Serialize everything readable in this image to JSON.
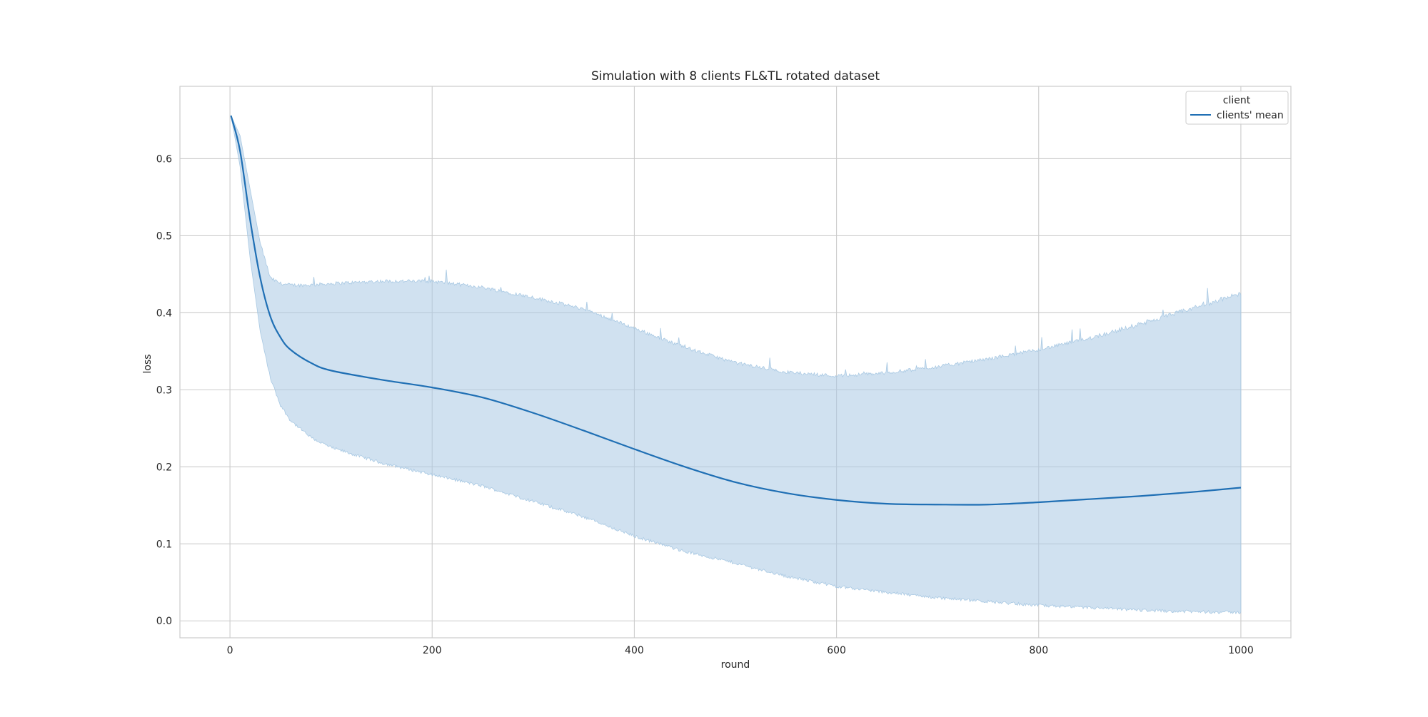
{
  "chart_data": {
    "type": "line",
    "title": "Simulation with 8 clients FL&TL rotated dataset",
    "xlabel": "round",
    "ylabel": "loss",
    "xlim": [
      -49.5,
      1049.5
    ],
    "ylim": [
      -0.022,
      0.694
    ],
    "xticks": [
      0,
      200,
      400,
      600,
      800,
      1000
    ],
    "yticks": [
      0.0,
      0.1,
      0.2,
      0.3,
      0.4,
      0.5,
      0.6
    ],
    "xtick_labels": [
      "0",
      "200",
      "400",
      "600",
      "800",
      "1000"
    ],
    "ytick_labels": [
      "0.0",
      "0.1",
      "0.2",
      "0.3",
      "0.4",
      "0.5",
      "0.6"
    ],
    "grid": true,
    "legend": {
      "title": "client",
      "location": "top-right",
      "entries": [
        "clients' mean"
      ]
    },
    "colors": {
      "line": "#1f6fb4",
      "band": "#a9c9e3",
      "grid": "#cccccc",
      "frame": "#cccccc"
    },
    "series": [
      {
        "name": "clients' mean",
        "x": [
          1,
          10,
          20,
          30,
          40,
          50,
          60,
          80,
          100,
          150,
          200,
          250,
          300,
          350,
          400,
          450,
          500,
          550,
          600,
          650,
          700,
          750,
          800,
          850,
          900,
          950,
          1000
        ],
        "y": [
          0.656,
          0.61,
          0.52,
          0.445,
          0.395,
          0.368,
          0.352,
          0.335,
          0.325,
          0.313,
          0.303,
          0.29,
          0.27,
          0.247,
          0.223,
          0.2,
          0.18,
          0.166,
          0.157,
          0.152,
          0.151,
          0.151,
          0.154,
          0.158,
          0.162,
          0.167,
          0.173
        ],
        "band_upper": [
          0.656,
          0.63,
          0.56,
          0.49,
          0.445,
          0.438,
          0.436,
          0.436,
          0.438,
          0.441,
          0.441,
          0.433,
          0.42,
          0.405,
          0.38,
          0.355,
          0.335,
          0.323,
          0.318,
          0.322,
          0.33,
          0.34,
          0.352,
          0.367,
          0.385,
          0.405,
          0.425
        ],
        "band_lower": [
          0.656,
          0.59,
          0.47,
          0.375,
          0.315,
          0.28,
          0.26,
          0.238,
          0.225,
          0.205,
          0.19,
          0.175,
          0.155,
          0.135,
          0.11,
          0.09,
          0.075,
          0.058,
          0.045,
          0.037,
          0.03,
          0.025,
          0.02,
          0.017,
          0.014,
          0.012,
          0.011
        ]
      }
    ]
  }
}
